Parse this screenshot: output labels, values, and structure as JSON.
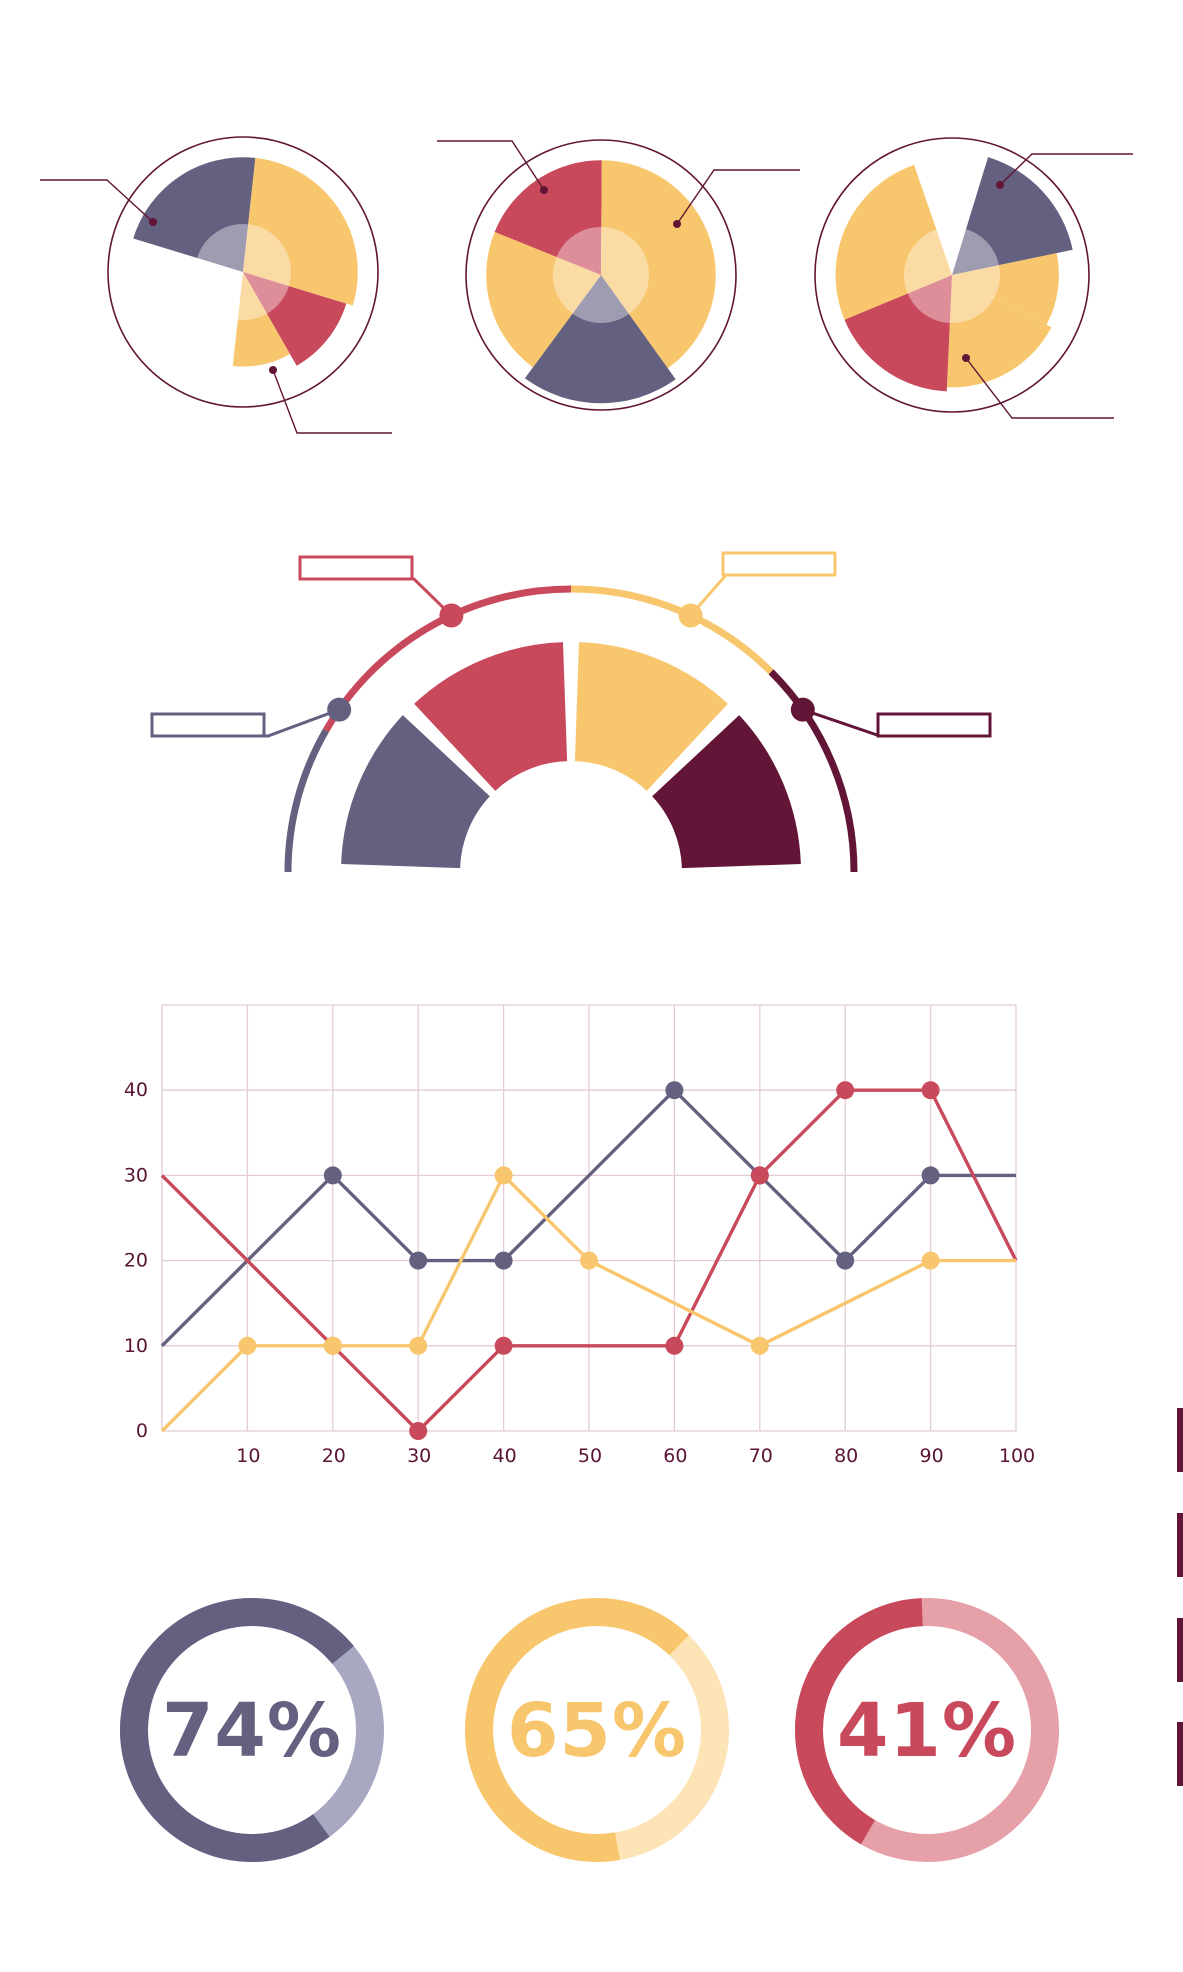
{
  "colors": {
    "slate": "#636080",
    "yellow": "#f8c66d",
    "red": "#c8495b",
    "maroon": "#621536",
    "center_light": "#f3ddc9",
    "grid": "#e4ccd4",
    "axis_text": "#5a1535"
  },
  "chart_data": [
    {
      "type": "pie",
      "variant": "polar-area",
      "slices": [
        {
          "color": "slate",
          "share": 0.22,
          "magnitude": 0.85,
          "callout": true
        },
        {
          "color": "yellow",
          "share": 0.28,
          "magnitude": 0.85
        },
        {
          "color": "red",
          "share": 0.12,
          "magnitude": 0.8,
          "callout": true
        },
        {
          "color": "yellow",
          "share": 0.1,
          "magnitude": 0.7
        }
      ]
    },
    {
      "type": "pie",
      "variant": "polar-area",
      "slices": [
        {
          "color": "red",
          "share": 0.19,
          "magnitude": 0.85,
          "callout": true
        },
        {
          "color": "yellow",
          "share": 0.4,
          "magnitude": 0.85,
          "callout": true
        },
        {
          "color": "slate",
          "share": 0.2,
          "magnitude": 0.95
        },
        {
          "color": "yellow",
          "share": 0.21,
          "magnitude": 0.85
        }
      ]
    },
    {
      "type": "pie",
      "variant": "polar-area",
      "slices": [
        {
          "color": "slate",
          "share": 0.17,
          "magnitude": 0.9,
          "callout": true
        },
        {
          "color": "yellow",
          "share": 0.11,
          "magnitude": 0.78
        },
        {
          "color": "yellow",
          "share": 0.18,
          "magnitude": 0.82,
          "callout": true
        },
        {
          "color": "red",
          "share": 0.18,
          "magnitude": 0.85
        },
        {
          "color": "yellow",
          "share": 0.26,
          "magnitude": 0.85
        }
      ]
    },
    {
      "type": "pie",
      "variant": "semicircle",
      "segments": [
        {
          "color": "slate",
          "share": 0.25
        },
        {
          "color": "red",
          "share": 0.25
        },
        {
          "color": "yellow",
          "share": 0.25
        },
        {
          "color": "maroon",
          "share": 0.25
        }
      ]
    },
    {
      "type": "line",
      "x": [
        0,
        10,
        20,
        30,
        40,
        50,
        60,
        70,
        80,
        90,
        100
      ],
      "xticks": [
        "10",
        "20",
        "30",
        "40",
        "50",
        "60",
        "70",
        "80",
        "90",
        "100"
      ],
      "yticks": [
        "0",
        "10",
        "20",
        "30",
        "40"
      ],
      "xlim": [
        0,
        100
      ],
      "ylim": [
        0,
        50
      ],
      "grid": true,
      "series": [
        {
          "color": "slate",
          "values": [
            10,
            20,
            30,
            20,
            20,
            30,
            40,
            30,
            20,
            30,
            30
          ],
          "markers": [
            20,
            30,
            40,
            60,
            70,
            80,
            90
          ]
        },
        {
          "color": "red",
          "values": [
            30,
            20,
            10,
            0,
            10,
            10,
            10,
            30,
            40,
            40,
            20
          ],
          "markers": [
            20,
            30,
            40,
            60,
            70,
            80,
            90
          ]
        },
        {
          "color": "yellow",
          "values": [
            0,
            10,
            10,
            10,
            30,
            20,
            15,
            10,
            15,
            20,
            20
          ],
          "markers": [
            10,
            20,
            30,
            40,
            50,
            70,
            90
          ]
        }
      ]
    },
    {
      "type": "pie",
      "variant": "donut",
      "items": [
        {
          "label": "74%",
          "value": 74,
          "color": "#636080",
          "light": "#a9a8c3"
        },
        {
          "label": "65%",
          "value": 65,
          "color": "#f8c66d",
          "light": "#fce4b7"
        },
        {
          "label": "41%",
          "value": 41,
          "color": "#c8495b",
          "light": "#e6a0a8"
        }
      ]
    }
  ]
}
